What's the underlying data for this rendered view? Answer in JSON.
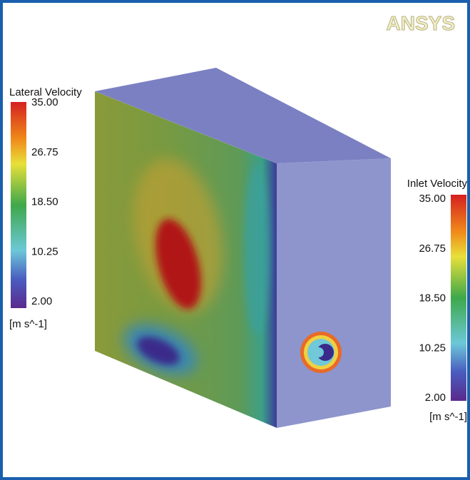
{
  "logo": "ANSYS",
  "legends": [
    {
      "title": "Lateral Velocity",
      "ticks": [
        "35.00",
        "26.75",
        "18.50",
        "10.25",
        "2.00"
      ],
      "unit": "[m s^-1]"
    },
    {
      "title": "Inlet Velocity",
      "ticks": [
        "35.00",
        "26.75",
        "18.50",
        "10.25",
        "2.00"
      ],
      "unit": "[m s^-1]"
    }
  ]
}
